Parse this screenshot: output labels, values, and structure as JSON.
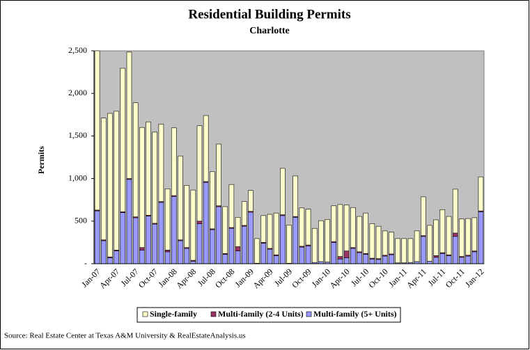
{
  "chart_data": {
    "type": "stacked_bar",
    "title": "Residential Building Permits",
    "subtitle": "Charlotte",
    "y_label": "Permits",
    "source": "Source: Real Estate Center at Texas A&M University & RealEstateAnalysis.us",
    "categories": [
      "Jan-07",
      null,
      null,
      "Apr-07",
      null,
      null,
      "Jul-07",
      null,
      null,
      "Oct-07",
      null,
      null,
      "Jan-08",
      null,
      null,
      "Apr-08",
      null,
      null,
      "Jul-08",
      null,
      null,
      "Oct-08",
      null,
      null,
      "Jan-09",
      null,
      null,
      "Apr-09",
      null,
      null,
      "Jul-09",
      null,
      null,
      "Oct-09",
      null,
      null,
      "Jan-10",
      null,
      null,
      "Apr-10",
      null,
      null,
      "Jul-10",
      null,
      null,
      "Oct-10",
      null,
      null,
      "Jan-11",
      null,
      null,
      "Apr-11",
      null,
      null,
      "Jul-11",
      null,
      null,
      "Oct-11",
      null,
      null,
      "Jan-12"
    ],
    "series": [
      {
        "name": "Single-family",
        "color": "#ffffcc",
        "values": [
          1870,
          1430,
          1685,
          1630,
          1685,
          1485,
          1340,
          1410,
          1095,
          1070,
          910,
          720,
          795,
          985,
          730,
          825,
          1120,
          775,
          670,
          725,
          550,
          505,
          345,
          280,
          245,
          290,
          315,
          400,
          490,
          545,
          450,
          475,
          450,
          420,
          400,
          480,
          500,
          420,
          610,
          540,
          470,
          415,
          475,
          405,
          380,
          285,
          255,
          285,
          285,
          280,
          360,
          455,
          420,
          420,
          505,
          450,
          515,
          440,
          430,
          390,
          400
        ]
      },
      {
        "name": "Multi-family (2-4 Units)",
        "color": "#993366",
        "values": [
          10,
          10,
          10,
          10,
          10,
          10,
          10,
          30,
          10,
          10,
          10,
          20,
          10,
          10,
          10,
          10,
          30,
          10,
          10,
          10,
          10,
          10,
          50,
          10,
          10,
          0,
          10,
          10,
          10,
          10,
          0,
          10,
          10,
          10,
          0,
          0,
          0,
          10,
          30,
          80,
          10,
          10,
          10,
          10,
          10,
          10,
          10,
          0,
          0,
          0,
          0,
          10,
          0,
          20,
          10,
          10,
          40,
          10,
          10,
          10,
          10
        ]
      },
      {
        "name": "Multi-family (5+ Units)",
        "color": "#9999ff",
        "values": [
          620,
          270,
          70,
          150,
          600,
          990,
          540,
          160,
          560,
          465,
          720,
          140,
          790,
          270,
          180,
          30,
          470,
          955,
          400,
          670,
          110,
          415,
          150,
          440,
          605,
          5,
          240,
          170,
          95,
          565,
          5,
          545,
          195,
          210,
          15,
          25,
          20,
          250,
          55,
          70,
          180,
          130,
          110,
          55,
          50,
          90,
          105,
          10,
          10,
          15,
          25,
          320,
          30,
          75,
          120,
          95,
          320,
          75,
          90,
          140,
          610
        ]
      }
    ],
    "stack_order": [
      2,
      1,
      0
    ],
    "ylim": [
      0,
      2500
    ],
    "yticks": [
      {
        "value": 0,
        "label": "-"
      },
      500,
      {
        "value": 1000,
        "label": "1,000"
      },
      {
        "value": 1500,
        "label": "1,500"
      },
      {
        "value": 2000,
        "label": "2,000"
      },
      {
        "value": 2500,
        "label": "2,500"
      }
    ],
    "grid": false,
    "plot_background": "#c0c0c0",
    "legend": "bottom"
  }
}
